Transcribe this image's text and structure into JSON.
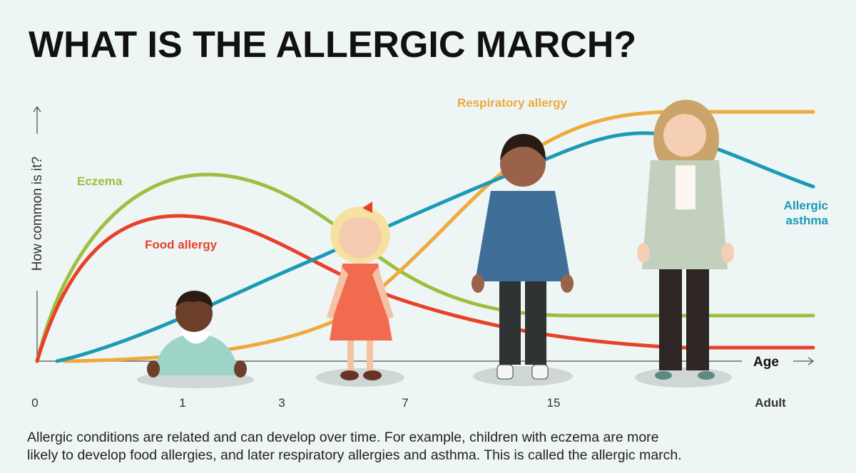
{
  "header": {
    "title": "WHAT IS THE ALLERGIC MARCH?"
  },
  "axes": {
    "y_label": "How common is it?",
    "x_label": "Age",
    "ages": [
      "0",
      "1",
      "3",
      "7",
      "15",
      "Adult"
    ]
  },
  "curves": {
    "eczema": "Eczema",
    "food_allergy": "Food allergy",
    "respiratory_allergy": "Respiratory allergy",
    "allergic_asthma": [
      "Allergic",
      "asthma"
    ]
  },
  "caption": [
    "Allergic conditions are related and can develop over time. For example, children with eczema are more",
    "likely to develop food allergies, and later respiratory allergies and asthma. This is called the allergic march."
  ]
}
